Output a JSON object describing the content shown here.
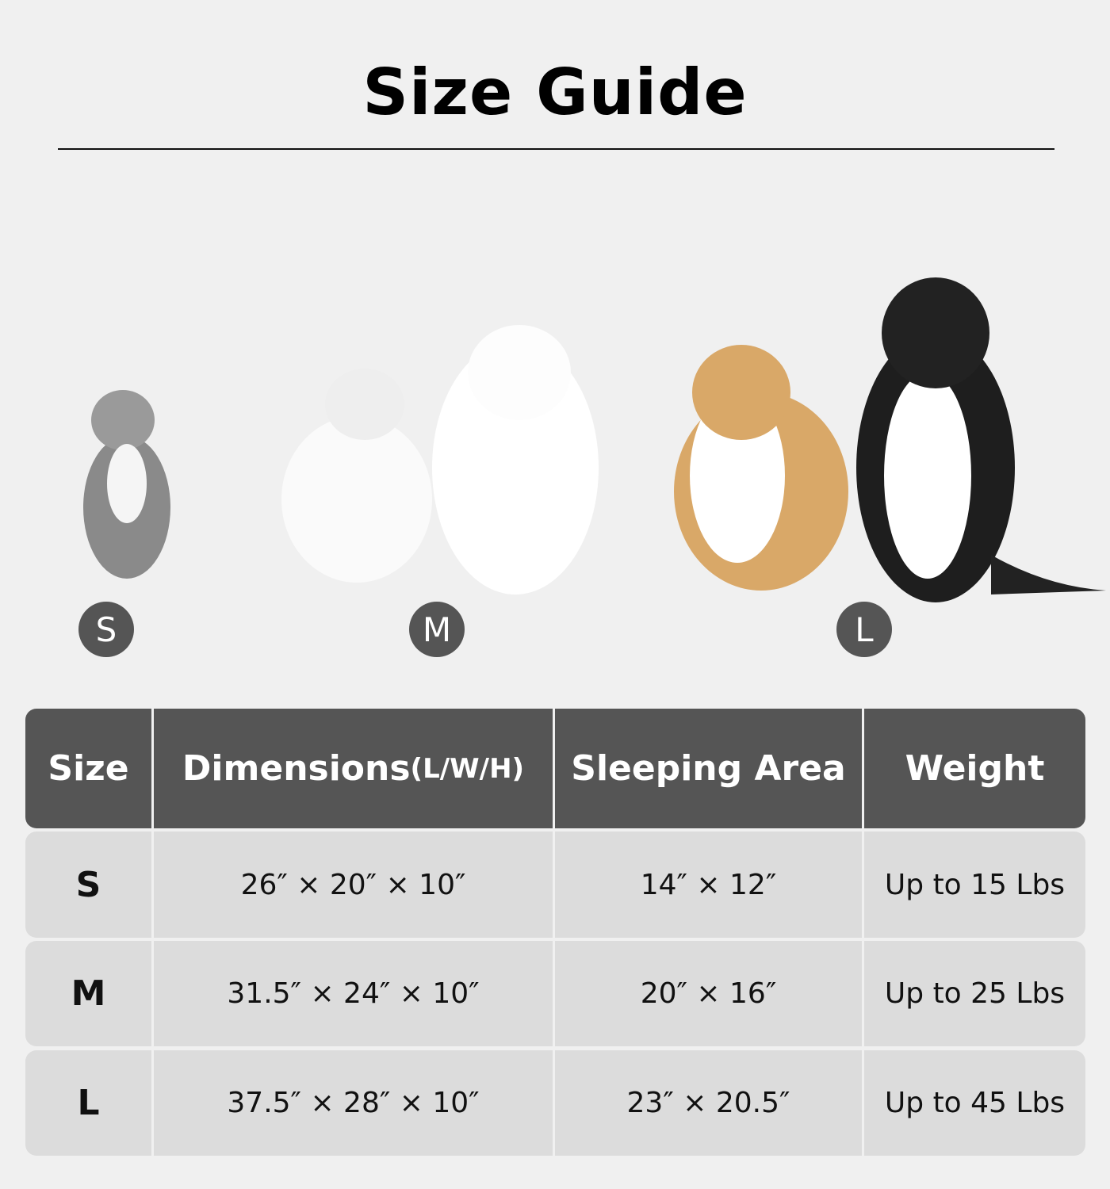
{
  "title": "Size Guide",
  "sizes": [
    {
      "label": "S",
      "pets": [
        "cat"
      ]
    },
    {
      "label": "M",
      "pets": [
        "ragdoll-cat",
        "pomeranian"
      ]
    },
    {
      "label": "L",
      "pets": [
        "corgi",
        "border-collie"
      ]
    }
  ],
  "table": {
    "headers": [
      "Size",
      "Dimensions",
      "(L/W/H)",
      "Sleeping Area",
      "Weight"
    ],
    "rows": [
      [
        "S",
        "26″ × 20″ × 10″",
        "14″ × 12″",
        "Up to 15 Lbs"
      ],
      [
        "M",
        "31.5″ × 24″ × 10″",
        "20″ × 16″",
        "Up to 25 Lbs"
      ],
      [
        "L",
        "37.5″ × 28″ × 10″",
        "23″ × 20.5″",
        "Up to 45 Lbs"
      ]
    ]
  },
  "colors": {
    "background": "#f0f0f0",
    "header": "#555555",
    "row": "#dcdcdc",
    "badge": "#555555"
  }
}
